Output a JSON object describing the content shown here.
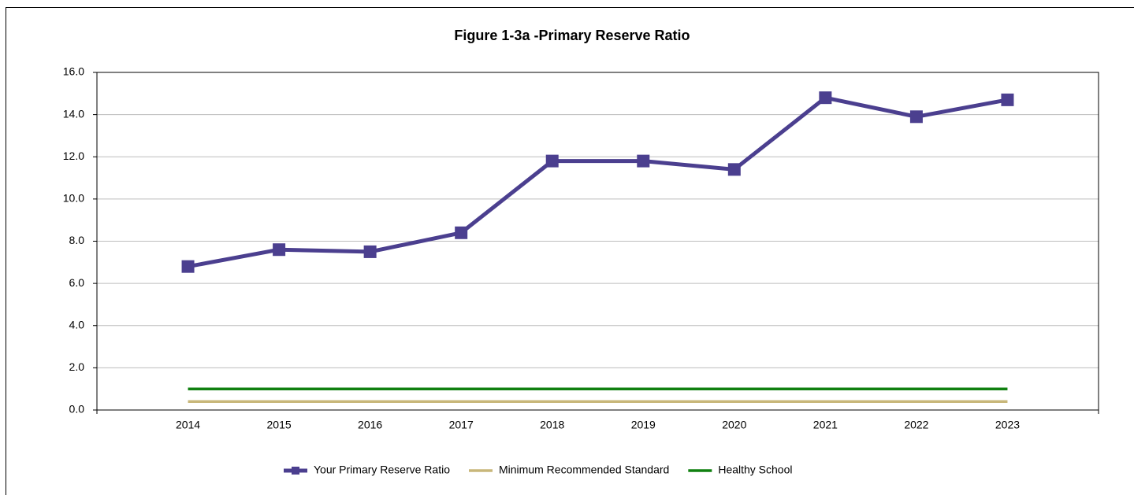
{
  "chart_data": {
    "type": "line",
    "title": "Figure 1-3a -Primary Reserve Ratio",
    "categories": [
      "2014",
      "2015",
      "2016",
      "2017",
      "2018",
      "2019",
      "2020",
      "2021",
      "2022",
      "2023"
    ],
    "series": [
      {
        "name": "Your Primary Reserve Ratio",
        "color": "#4b3f8f",
        "marker": "square",
        "values": [
          6.8,
          7.6,
          7.5,
          8.4,
          11.8,
          11.8,
          11.4,
          14.8,
          13.9,
          14.7
        ]
      },
      {
        "name": "Minimum Recommended Standard",
        "color": "#c8b77a",
        "values": [
          0.4,
          0.4,
          0.4,
          0.4,
          0.4,
          0.4,
          0.4,
          0.4,
          0.4,
          0.4
        ]
      },
      {
        "name": "Healthy School",
        "color": "#108010",
        "values": [
          1.0,
          1.0,
          1.0,
          1.0,
          1.0,
          1.0,
          1.0,
          1.0,
          1.0,
          1.0
        ]
      }
    ],
    "ylim": [
      0,
      16
    ],
    "yticks": [
      {
        "value": 0,
        "label": "0.0"
      },
      {
        "value": 2,
        "label": "2.0"
      },
      {
        "value": 4,
        "label": "4.0"
      },
      {
        "value": 6,
        "label": "6.0"
      },
      {
        "value": 8,
        "label": "8.0"
      },
      {
        "value": 10,
        "label": "10.0"
      },
      {
        "value": 12,
        "label": "12.0"
      },
      {
        "value": 14,
        "label": "14.0"
      },
      {
        "value": 16,
        "label": "16.0"
      }
    ],
    "grid": true,
    "legend": "bottom"
  }
}
